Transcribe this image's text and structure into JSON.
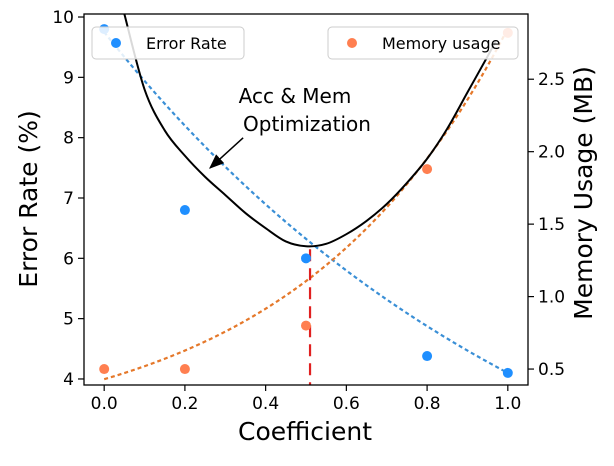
{
  "chart_data": {
    "type": "scatter",
    "x": [
      0.0,
      0.2,
      0.5,
      0.8,
      1.0
    ],
    "xlabel": "Coefficient",
    "xlim": [
      -0.05,
      1.05
    ],
    "xticks": [
      "0.0",
      "0.2",
      "0.4",
      "0.6",
      "0.8",
      "1.0"
    ],
    "xtick_values": [
      0.0,
      0.2,
      0.4,
      0.6,
      0.8,
      1.0
    ],
    "left_axis": {
      "label": "Error Rate (%)",
      "ylim": [
        3.9,
        10.05
      ],
      "ticks": [
        "4",
        "5",
        "6",
        "7",
        "8",
        "9",
        "10"
      ],
      "tick_values": [
        4,
        5,
        6,
        7,
        8,
        9,
        10
      ]
    },
    "right_axis": {
      "label": "Memory Usage (MB)",
      "ylim": [
        0.39,
        2.95
      ],
      "ticks": [
        "0.5",
        "1.0",
        "1.5",
        "2.0",
        "2.5"
      ],
      "tick_values": [
        0.5,
        1.0,
        1.5,
        2.0,
        2.5
      ]
    },
    "series": [
      {
        "name": "Error Rate",
        "axis": "left",
        "color": "#1f8fff",
        "values": [
          9.8,
          6.8,
          6.0,
          4.38,
          4.1
        ],
        "trend": {
          "style": "dashed",
          "color": "#3a8fd6",
          "x_range": [
            0.0,
            1.0
          ],
          "start": 9.75,
          "end": 4.1
        }
      },
      {
        "name": "Memory usage",
        "axis": "right",
        "color": "#ff7f50",
        "values": [
          0.5,
          0.5,
          0.8,
          1.88,
          2.82
        ],
        "trend": {
          "style": "dashed",
          "color": "#e5782a",
          "x_range": [
            0.0,
            1.0
          ],
          "start": 0.43,
          "end": 2.85
        }
      }
    ],
    "combined_curve": {
      "color": "#000000",
      "axis": "left",
      "points": [
        [
          0.05,
          10.05
        ],
        [
          0.1,
          8.8
        ],
        [
          0.15,
          8.12
        ],
        [
          0.2,
          7.7
        ],
        [
          0.25,
          7.35
        ],
        [
          0.3,
          7.05
        ],
        [
          0.35,
          6.75
        ],
        [
          0.4,
          6.5
        ],
        [
          0.45,
          6.28
        ],
        [
          0.5,
          6.2
        ],
        [
          0.55,
          6.24
        ],
        [
          0.6,
          6.4
        ],
        [
          0.65,
          6.62
        ],
        [
          0.7,
          6.9
        ],
        [
          0.75,
          7.25
        ],
        [
          0.8,
          7.65
        ],
        [
          0.85,
          8.15
        ],
        [
          0.9,
          8.75
        ],
        [
          0.95,
          9.35
        ],
        [
          0.97,
          9.6
        ]
      ]
    },
    "optimum_line": {
      "x": 0.51,
      "color": "#e02020",
      "style": "dashed"
    },
    "annotation": {
      "lines": [
        "Acc & Mem",
        "Optimization"
      ],
      "arrow_to": [
        0.265,
        7.5
      ]
    },
    "legend_left": {
      "placement": "top-left",
      "label": "Error Rate"
    },
    "legend_right": {
      "placement": "top-right",
      "label": "Memory usage"
    },
    "grid": false
  }
}
